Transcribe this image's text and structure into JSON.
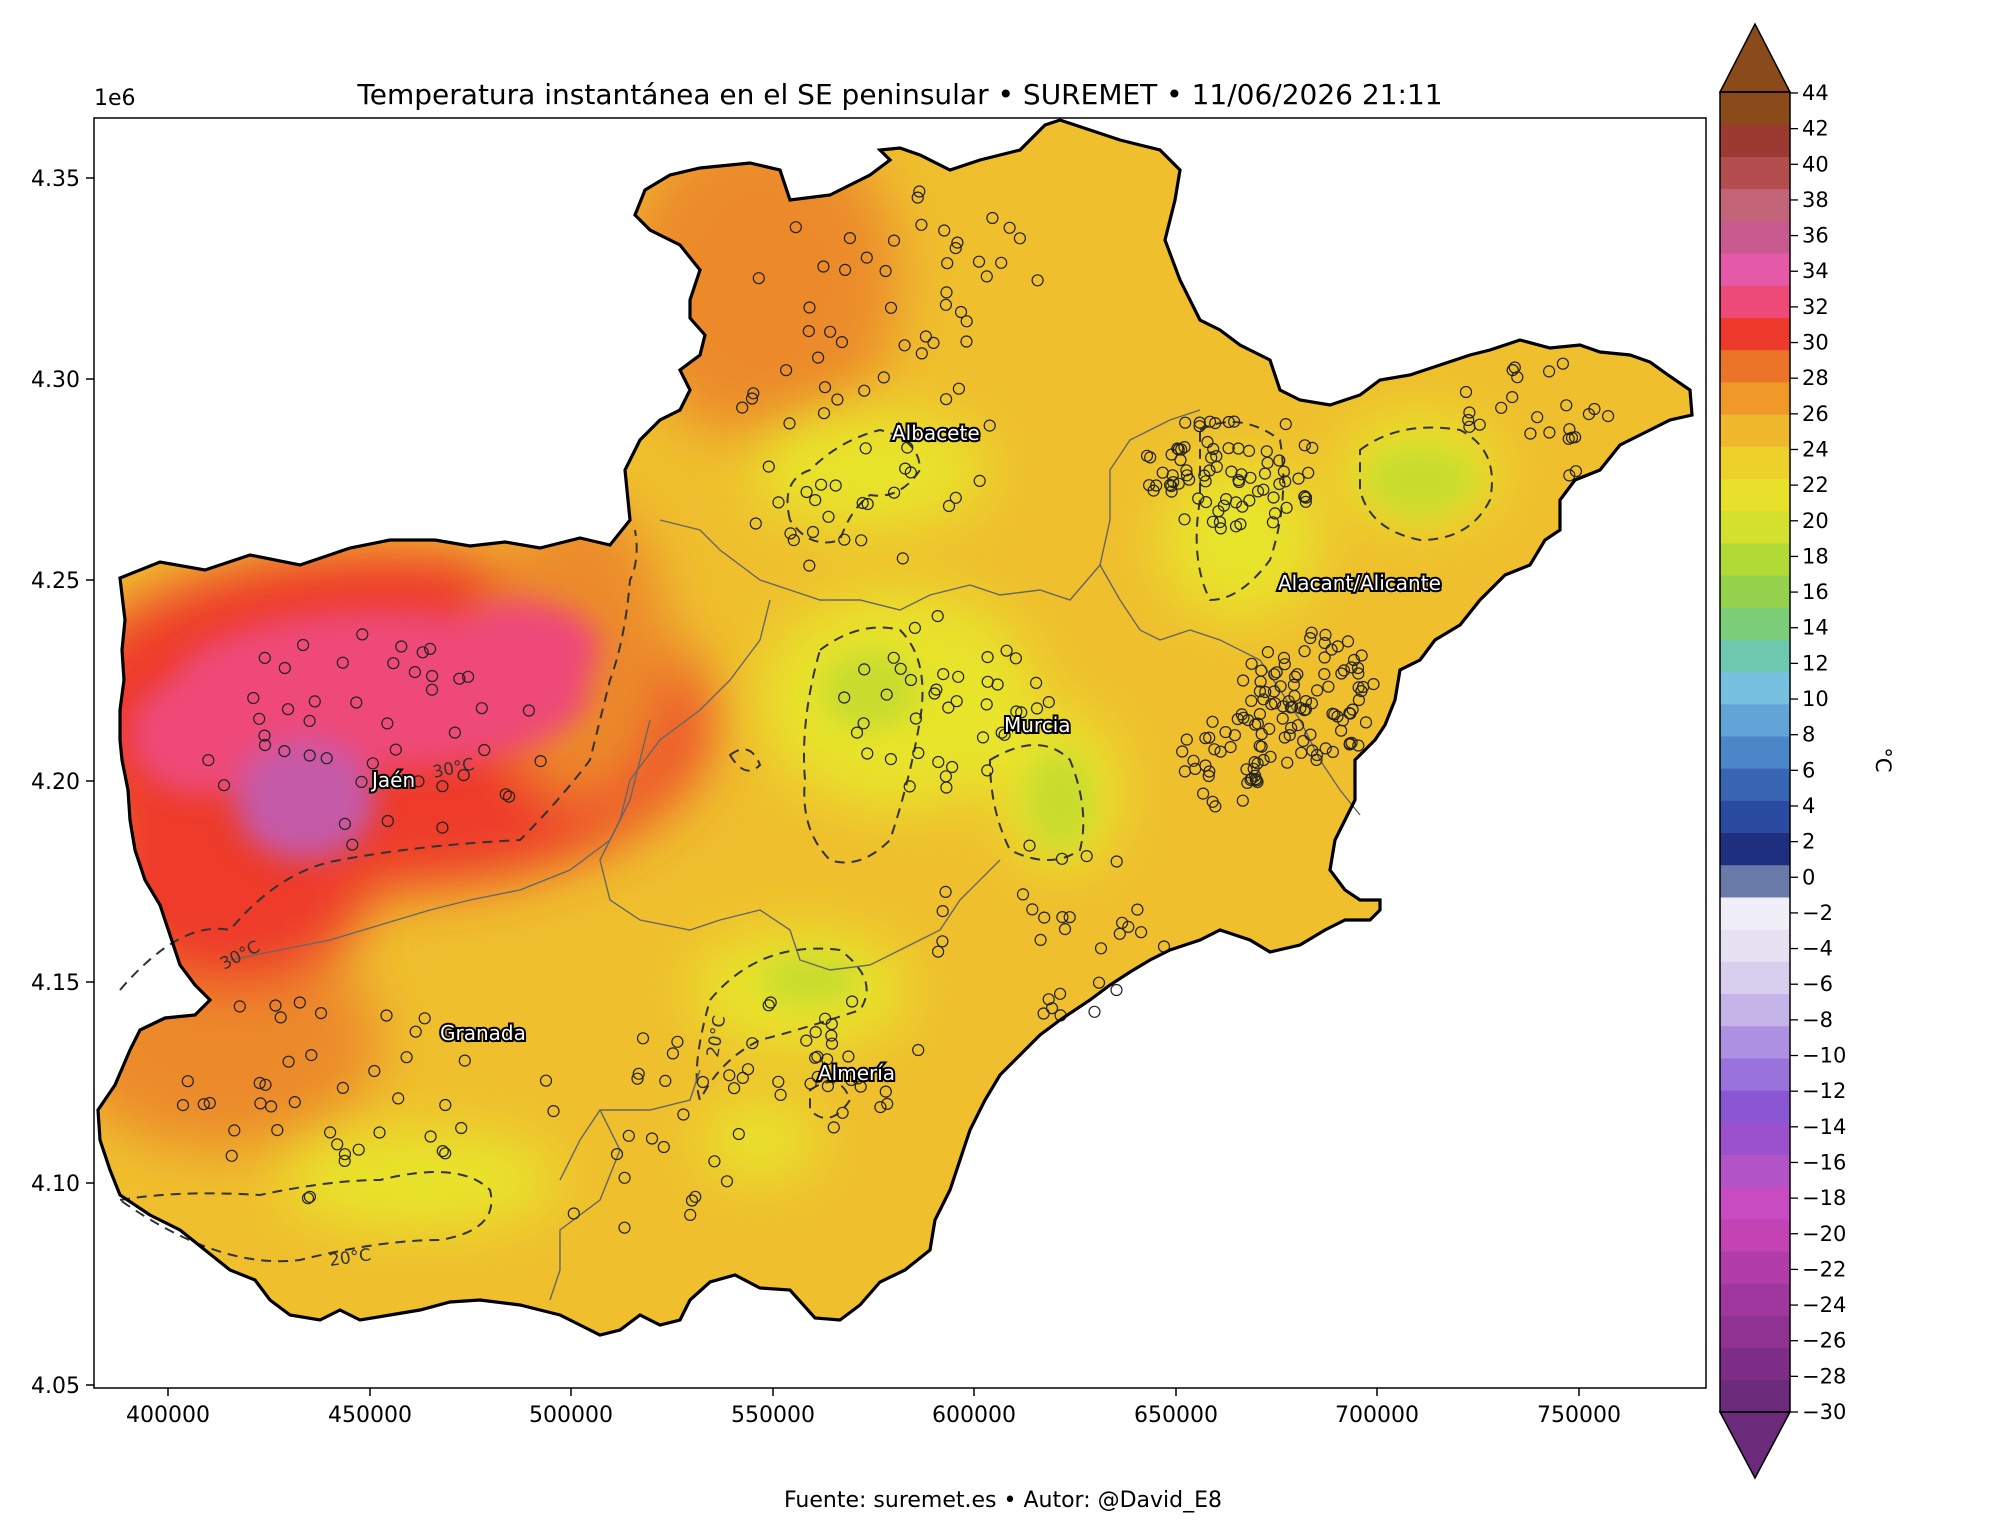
{
  "title": "Temperatura instantánea en el SE peninsular • SUREMET • 11/06/2026 21:11",
  "footer": "Fuente: suremet.es   •   Autor: @David_E8",
  "y_scale_note": "1e6",
  "x_ticks": [
    "400000",
    "450000",
    "500000",
    "550000",
    "600000",
    "650000",
    "700000",
    "750000"
  ],
  "y_ticks": [
    "4.35",
    "4.30",
    "4.25",
    "4.20",
    "4.15",
    "4.10",
    "4.05"
  ],
  "cities": [
    {
      "name": "Albacete"
    },
    {
      "name": "Alacant/Alicante"
    },
    {
      "name": "Murcia"
    },
    {
      "name": "Jaén"
    },
    {
      "name": "Granada"
    },
    {
      "name": "Almería"
    }
  ],
  "contour_labels": [
    "30°C",
    "30°C",
    "20°C",
    "20°C"
  ],
  "colorbar": {
    "unit": "°C",
    "tick_labels": [
      "44",
      "42",
      "40",
      "38",
      "36",
      "34",
      "32",
      "30",
      "28",
      "26",
      "24",
      "22",
      "20",
      "18",
      "16",
      "14",
      "12",
      "10",
      "8",
      "6",
      "4",
      "2",
      "0",
      "−2",
      "−4",
      "−6",
      "−8",
      "−10",
      "−12",
      "−14",
      "−16",
      "−18",
      "−20",
      "−22",
      "−24",
      "−26",
      "−28",
      "−30"
    ],
    "colors": [
      "#6b2a7a",
      "#7d2d86",
      "#8f3292",
      "#a0379e",
      "#b23caa",
      "#c443b4",
      "#c84bc2",
      "#b254c8",
      "#9b50cc",
      "#8a56d4",
      "#9a72dc",
      "#ad90e2",
      "#c4b4e8",
      "#d8cfee",
      "#e6e2f2",
      "#f0eef6",
      "#6a7aa8",
      "#1f2f80",
      "#2a4ba0",
      "#3866b4",
      "#4b86c8",
      "#63a4d8",
      "#78c0e0",
      "#6ec8b0",
      "#7ccd78",
      "#94d24e",
      "#b2da36",
      "#d4e02e",
      "#e8e02a",
      "#eed02a",
      "#f0b82c",
      "#f09828",
      "#ec7428",
      "#ee3a2c",
      "#ee4a78",
      "#e45aa8",
      "#c85a90",
      "#c46478",
      "#b44e4e",
      "#9a3a30",
      "#8a4a1a"
    ]
  },
  "palette": {
    "land_base": "#efbf2e",
    "hot_red": "#ee3a2c",
    "hot_pink": "#ee4a78",
    "magenta": "#c55aa8",
    "cool_yellow": "#e8e42a",
    "green": "#c8dc2e"
  }
}
